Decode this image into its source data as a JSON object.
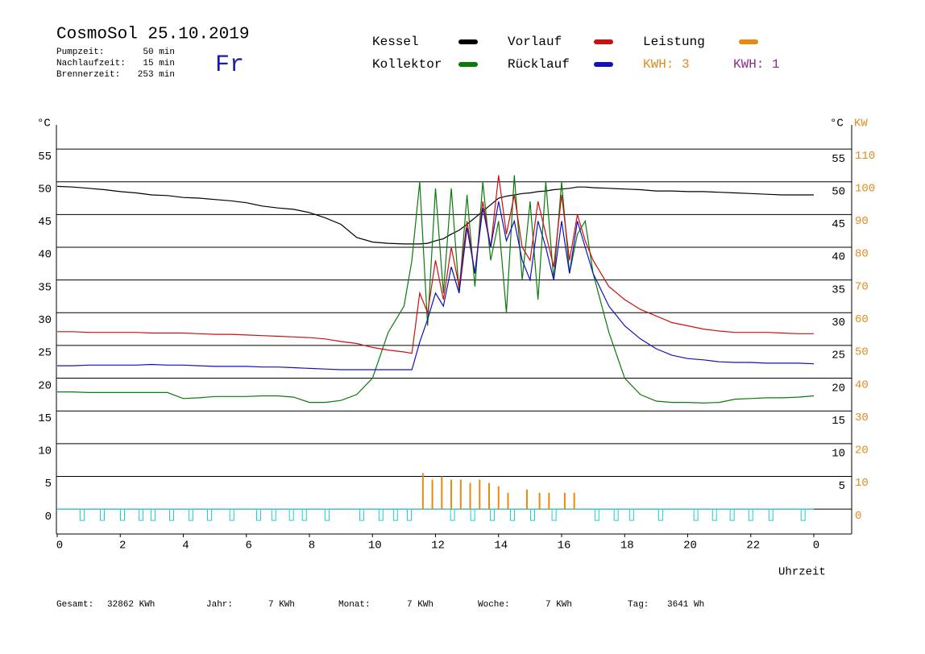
{
  "header": {
    "title": "CosmoSol 25.10.2019",
    "day": "Fr",
    "info": [
      {
        "label": "Pumpzeit:",
        "value": "50 min"
      },
      {
        "label": "Nachlaufzeit:",
        "value": "15 min"
      },
      {
        "label": "Brennerzeit:",
        "value": "253 min"
      }
    ]
  },
  "chart_data": {
    "type": "line",
    "y_unit": "°C",
    "y2_unit": "KW",
    "xlabel": "Uhrzeit",
    "kwh_labels": [
      {
        "text": "KWH: 3",
        "color": "#e08a1e"
      },
      {
        "text": "KWH: 1",
        "color": "#8e2a8e"
      }
    ],
    "x": [
      0,
      0.5,
      1,
      1.5,
      2,
      2.5,
      3,
      3.5,
      4,
      4.5,
      5,
      5.5,
      6,
      6.5,
      7,
      7.5,
      8,
      8.5,
      9,
      9.5,
      10,
      10.5,
      11,
      11.25,
      11.5,
      11.75,
      12,
      12.25,
      12.5,
      12.75,
      13,
      13.25,
      13.5,
      13.75,
      14,
      14.25,
      14.5,
      14.75,
      15,
      15.25,
      15.5,
      15.75,
      16,
      16.25,
      16.5,
      16.75,
      17,
      17.5,
      18,
      18.5,
      19,
      19.5,
      20,
      20.5,
      21,
      21.5,
      22,
      22.5,
      23,
      23.5,
      24
    ],
    "series": [
      {
        "name": "Kessel",
        "color": "#000000",
        "values": [
          49.3,
          49.2,
          49,
          48.8,
          48.5,
          48.3,
          48,
          47.9,
          47.6,
          47.5,
          47.3,
          47.1,
          46.8,
          46.3,
          46,
          45.8,
          45.3,
          44.5,
          43.5,
          41.5,
          40.8,
          40.6,
          40.5,
          40.5,
          40.5,
          40.6,
          41,
          41.3,
          42,
          42.6,
          43.5,
          44.5,
          45.5,
          46.5,
          47.5,
          47.8,
          48,
          48.2,
          48.3,
          48.5,
          48.6,
          48.8,
          48.9,
          49,
          49.2,
          49.2,
          49.1,
          49,
          48.9,
          48.8,
          48.6,
          48.6,
          48.5,
          48.5,
          48.4,
          48.3,
          48.2,
          48.1,
          48,
          48,
          48
        ]
      },
      {
        "name": "Kollektor",
        "color": "#0a7a0a",
        "values": [
          17.9,
          17.9,
          17.8,
          17.8,
          17.8,
          17.8,
          17.8,
          17.8,
          16.9,
          17,
          17.2,
          17.2,
          17.2,
          17.3,
          17.3,
          17.1,
          16.3,
          16.3,
          16.6,
          17.5,
          20,
          27,
          31,
          38,
          50,
          28,
          49,
          33,
          49,
          33,
          48,
          34,
          50,
          38,
          44,
          30,
          51,
          35,
          47,
          32,
          50,
          35,
          50,
          36,
          42,
          44,
          36,
          27,
          20,
          17.5,
          16.5,
          16.3,
          16.3,
          16.2,
          16.3,
          16.8,
          16.9,
          17,
          17,
          17.1,
          17.3
        ]
      },
      {
        "name": "Vorlauf",
        "color": "#cc1010",
        "values": [
          27.1,
          27.1,
          27,
          27,
          27,
          27,
          26.9,
          26.9,
          26.9,
          26.8,
          26.7,
          26.7,
          26.6,
          26.5,
          26.4,
          26.3,
          26.2,
          26,
          25.6,
          25.3,
          24.7,
          24.3,
          24,
          23.8,
          33,
          30,
          38,
          32,
          40,
          34,
          44,
          36,
          47,
          40,
          51,
          42,
          48,
          40,
          38,
          47,
          42,
          37,
          48,
          38,
          45,
          41,
          38,
          34,
          32,
          30.5,
          29.5,
          28.5,
          28,
          27.5,
          27.2,
          27,
          27,
          27,
          26.9,
          26.8,
          26.8
        ]
      },
      {
        "name": "Rücklauf",
        "color": "#1010c0",
        "values": [
          21.9,
          21.9,
          22,
          22,
          22,
          22,
          22.1,
          22,
          22,
          21.9,
          21.8,
          21.8,
          21.8,
          21.7,
          21.7,
          21.6,
          21.5,
          21.4,
          21.3,
          21.3,
          21.3,
          21.3,
          21.3,
          21.3,
          25.5,
          29,
          33,
          31,
          37,
          33,
          43,
          36,
          46,
          40,
          47,
          41,
          44,
          38,
          35,
          44,
          40,
          35,
          44,
          36,
          44,
          40,
          36,
          31,
          28,
          26,
          24.5,
          23.5,
          23,
          22.8,
          22.5,
          22.4,
          22.4,
          22.3,
          22.3,
          22.3,
          22.2
        ]
      },
      {
        "name": "Leistung",
        "color": "#e88a10",
        "axis": "y2",
        "spikes": true,
        "x": [
          11.6,
          11.9,
          12.2,
          12.5,
          12.8,
          13.1,
          13.4,
          13.7,
          14.0,
          14.3,
          14.9,
          15.3,
          15.6,
          16.1,
          16.4
        ],
        "values": [
          11,
          9,
          10,
          9,
          9,
          8,
          9,
          8,
          7,
          5,
          6,
          5,
          5,
          5,
          5
        ]
      }
    ],
    "pump_marks": [
      0.79,
      1.43,
      2.07,
      2.66,
      3.04,
      3.63,
      4.24,
      4.83,
      5.54,
      6.39,
      6.87,
      7.43,
      7.84,
      8.56,
      9.66,
      10.27,
      10.73,
      11.17,
      12.54,
      13.18,
      13.8,
      14.44,
      15.08,
      15.76,
      17.12,
      17.73,
      18.22,
      19.14,
      20.26,
      20.85,
      21.41,
      22,
      22.64,
      23.66
    ],
    "pump_color": "#22cccc",
    "xlim": [
      0,
      24
    ],
    "xticks": [
      0,
      2,
      4,
      6,
      8,
      10,
      12,
      14,
      16,
      18,
      20,
      22,
      {
        "value": 24,
        "label": "0"
      }
    ],
    "ylim": [
      -3.8,
      58.7
    ],
    "yticks": [
      0,
      5,
      10,
      15,
      20,
      25,
      30,
      35,
      40,
      45,
      50,
      55
    ],
    "y2lim": [
      -7.6,
      117.4
    ],
    "y2ticks": [
      0,
      10,
      20,
      30,
      40,
      50,
      60,
      70,
      80,
      90,
      100,
      110
    ],
    "y2_color": "#e08a1e",
    "grid": true
  },
  "footer": [
    {
      "label": "Gesamt:",
      "value": "32862 KWh"
    },
    {
      "label": "Jahr:",
      "value": "7 KWh"
    },
    {
      "label": "Monat:",
      "value": "7 KWh"
    },
    {
      "label": "Woche:",
      "value": "7 KWh"
    },
    {
      "label": "Tag:",
      "value": "3641 Wh"
    }
  ]
}
